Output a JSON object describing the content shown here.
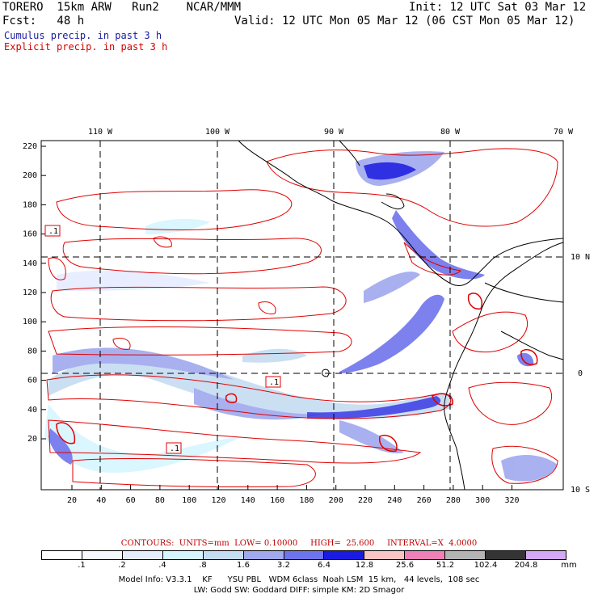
{
  "header": {
    "model": "TORERO  15km ARW   Run2    NCAR/MMM",
    "init": "Init: 12 UTC Sat 03 Mar 12",
    "fcst": "Fcst:   48 h",
    "valid": "Valid: 12 UTC Mon 05 Mar 12 (06 CST Mon 05 Mar 12)"
  },
  "legend": {
    "cumulus": "Cumulus precip. in past 3 h",
    "explicit": "Explicit precip. in past 3 h",
    "cumulus_color": "#1a1aa0",
    "explicit_color": "#d40000"
  },
  "map": {
    "top_lon_labels": [
      "110 W",
      "100 W",
      "90 W",
      "80 W",
      "70 W"
    ],
    "right_lat_labels": [
      "10 N",
      "0",
      "10 S"
    ],
    "y_tick_labels": [
      "220",
      "200",
      "180",
      "160",
      "140",
      "120",
      "100",
      "80",
      "60",
      "40",
      "20"
    ],
    "x_tick_labels": [
      "20",
      "40",
      "60",
      "80",
      "100",
      "120",
      "140",
      "160",
      "180",
      "200",
      "220",
      "240",
      "260",
      "280",
      "300",
      "320"
    ],
    "contour_value_boxes": [
      ".1",
      ".1",
      ".1"
    ]
  },
  "contour_info": {
    "contours": "CONTOURS:  UNITS=mm  LOW= 0.10000",
    "high": "HIGH=  25.600",
    "interval": "INTERVAL=X  4.0000"
  },
  "color_scale": {
    "labels": [
      ".1",
      ".2",
      ".4",
      ".8",
      "1.6",
      "3.2",
      "6.4",
      "12.8",
      "25.6",
      "51.2",
      "102.4",
      "204.8"
    ],
    "unit": "mm",
    "colors": [
      "#ffffff",
      "#f4f8ff",
      "#e6ecff",
      "#d6f6ff",
      "#c6dcf2",
      "#a0a8ee",
      "#6e74ec",
      "#1a1ae0",
      "#f9c4c4",
      "#f080b8",
      "#b4b4b4",
      "#343434",
      "#d4a8f4"
    ]
  },
  "footer": {
    "line1": "Model Info: V3.3.1    KF      YSU PBL   WDM 6class  Noah LSM  15 km,   44 levels,  108 sec",
    "line2": "LW: Godd SW: Goddard DIFF: simple KM: 2D Smagor"
  }
}
